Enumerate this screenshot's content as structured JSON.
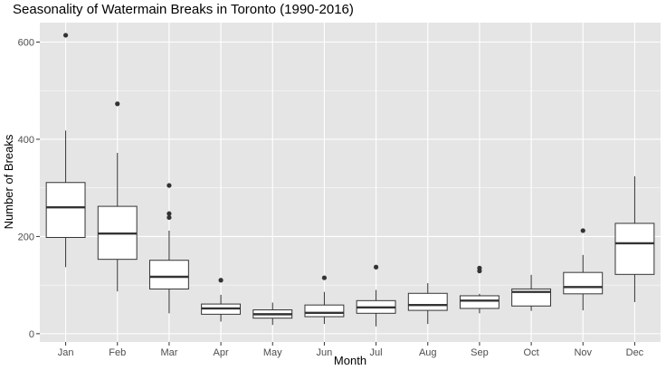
{
  "chart_data": {
    "type": "box",
    "title": "Seasonality of Watermain Breaks in Toronto (1990-2016)",
    "xlabel": "Month",
    "ylabel": "Number of Breaks",
    "ylim": [
      -17,
      640
    ],
    "yticks": [
      0,
      200,
      400,
      600
    ],
    "grid": true,
    "legend": "none",
    "colors": {
      "panel": "#e5e5e5",
      "grid": "#ffffff",
      "box_fill": "#ffffff",
      "stroke": "#333333",
      "text": "#4d4d4d"
    },
    "categories": [
      "Jan",
      "Feb",
      "Mar",
      "Apr",
      "May",
      "Jun",
      "Jul",
      "Aug",
      "Sep",
      "Oct",
      "Nov",
      "Dec"
    ],
    "boxes": [
      {
        "month": "Jan",
        "whisker_low": 137,
        "q1": 198,
        "median": 260,
        "q3": 311,
        "whisker_high": 418,
        "outliers": [
          614
        ]
      },
      {
        "month": "Feb",
        "whisker_low": 87,
        "q1": 153,
        "median": 206,
        "q3": 262,
        "whisker_high": 372,
        "outliers": [
          473
        ]
      },
      {
        "month": "Mar",
        "whisker_low": 42,
        "q1": 92,
        "median": 117,
        "q3": 151,
        "whisker_high": 212,
        "outliers": [
          305,
          247,
          239
        ]
      },
      {
        "month": "Apr",
        "whisker_low": 25,
        "q1": 40,
        "median": 52,
        "q3": 61,
        "whisker_high": 80,
        "outliers": [
          110
        ]
      },
      {
        "month": "May",
        "whisker_low": 18,
        "q1": 32,
        "median": 40,
        "q3": 49,
        "whisker_high": 64,
        "outliers": []
      },
      {
        "month": "Jun",
        "whisker_low": 20,
        "q1": 35,
        "median": 43,
        "q3": 59,
        "whisker_high": 86,
        "outliers": [
          115
        ]
      },
      {
        "month": "Jul",
        "whisker_low": 15,
        "q1": 42,
        "median": 54,
        "q3": 68,
        "whisker_high": 90,
        "outliers": [
          137
        ]
      },
      {
        "month": "Aug",
        "whisker_low": 20,
        "q1": 48,
        "median": 59,
        "q3": 83,
        "whisker_high": 104,
        "outliers": []
      },
      {
        "month": "Sep",
        "whisker_low": 42,
        "q1": 52,
        "median": 68,
        "q3": 78,
        "whisker_high": 82,
        "outliers": [
          135,
          129
        ]
      },
      {
        "month": "Oct",
        "whisker_low": 47,
        "q1": 57,
        "median": 86,
        "q3": 92,
        "whisker_high": 121,
        "outliers": []
      },
      {
        "month": "Nov",
        "whisker_low": 48,
        "q1": 82,
        "median": 96,
        "q3": 126,
        "whisker_high": 162,
        "outliers": [
          212
        ]
      },
      {
        "month": "Dec",
        "whisker_low": 65,
        "q1": 122,
        "median": 186,
        "q3": 227,
        "whisker_high": 324,
        "outliers": []
      }
    ]
  }
}
